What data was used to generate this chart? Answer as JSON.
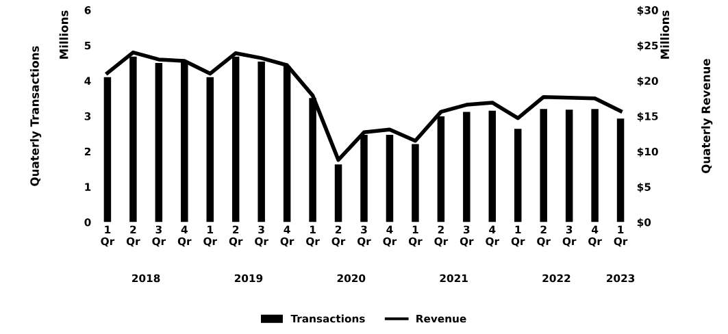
{
  "chart_data": {
    "type": "bar",
    "ylabel": "Quaterly Transactions",
    "y2label": "Quaterly Revenue",
    "categories": [
      "1\nQr",
      "2\nQr",
      "3\nQr",
      "4\nQr",
      "1\nQr",
      "2\nQr",
      "3\nQr",
      "4\nQr",
      "1\nQr",
      "2\nQr",
      "3\nQr",
      "4\nQr",
      "1\nQr",
      "2\nQr",
      "3\nQr",
      "4\nQr",
      "1\nQr",
      "2\nQr",
      "3\nQr",
      "4\nQr",
      "1\nQr"
    ],
    "series": [
      {
        "name": "Transactions",
        "color": "#000000",
        "values": [
          4.1,
          4.68,
          4.5,
          4.54,
          4.1,
          4.68,
          4.54,
          4.41,
          3.51,
          1.63,
          2.47,
          2.47,
          2.21,
          2.99,
          3.12,
          3.15,
          2.64,
          3.2,
          3.18,
          3.2,
          2.93
        ]
      },
      {
        "name": "Revenue",
        "type": "line",
        "axis": "y2",
        "color": "#000000",
        "values": [
          21.1,
          24.0,
          23.0,
          22.8,
          21.0,
          23.9,
          23.2,
          22.2,
          17.9,
          8.8,
          12.7,
          13.1,
          11.5,
          15.6,
          16.6,
          16.9,
          14.7,
          17.7,
          17.6,
          17.5,
          15.7
        ]
      }
    ],
    "ylim": [
      0,
      6
    ],
    "yticks": [
      0,
      1,
      2,
      3,
      4,
      5,
      6
    ],
    "y2lim": [
      0,
      30
    ],
    "y2ticks": [
      {
        "value": 0,
        "label": "$0"
      },
      {
        "value": 5,
        "label": "$5"
      },
      {
        "value": 10,
        "label": "$10"
      },
      {
        "value": 15,
        "label": "$15"
      },
      {
        "value": 20,
        "label": "$20"
      },
      {
        "value": 25,
        "label": "$25"
      },
      {
        "value": 30,
        "label": "$30"
      }
    ],
    "annotations": [
      "2018",
      "2019",
      "2020",
      "2021",
      "2022",
      "2023",
      "Millions",
      "Millions"
    ],
    "legend": "bottom",
    "grid": false,
    "marker": "none",
    "line_style": "solid"
  }
}
